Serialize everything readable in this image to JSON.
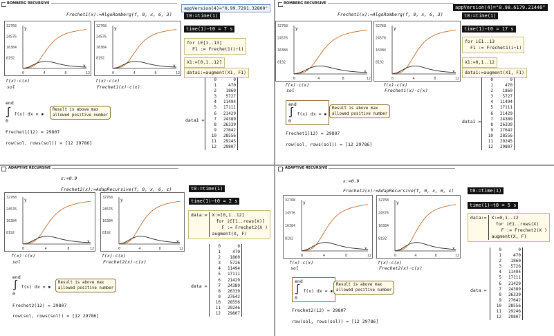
{
  "colors": {
    "curve_f": "#c06a2a",
    "curve_fc": "#222222",
    "note_border": "#8b6b2e"
  },
  "tl": {
    "region_title": "ROMBERG RECURSIVE",
    "def": "Frechet1(x):=AlgoRomberg(f, 0, x, 6, 3)",
    "app": "appVersion(4)=\"0.99.7291.32800\"",
    "t0": "t0:=time(1)",
    "elapsed": "time(1)−t0 = 7 s",
    "loop_for": "for i∈[1..13]",
    "loop_body": "F1 := Frechet1(i−1)",
    "x1": "X1:=[0,1..12]",
    "data1_def": "data1:=augment(X1, F1)",
    "data1_label": "data1 =",
    "plot1_legend": [
      "f(x)·c(x)",
      "sol"
    ],
    "plot2_legend": [
      "f(x)·c(x)",
      "Frechet1(x)·c(x)"
    ],
    "integral_end": "end",
    "integral_expr": "f(x) dx = ▪",
    "integral_zero": "0",
    "note": [
      "Result is above max",
      "allowed positive number"
    ],
    "frechet12": "Frechet1(12) = 29807",
    "row": "row(sol, rows(sol)) = [12  29786]"
  },
  "tr": {
    "region_title": "ROMBERG RECURSIVE",
    "def": "Frechet1(x):=AlgoRomberg(f, 0, x, 6, 3)",
    "app": "appVersion(4)=\"0.98.6179.21440\"",
    "t0": "t0:=time(1)",
    "elapsed": "time(1)−t0 = 17 s",
    "loop_for": "for i∈1..13",
    "loop_body": "F1 := Frechet1(i−1)",
    "x1": "X1:=0,1..12",
    "data1_def": "data1:=augment(X1, F1)",
    "data1_label": "data1 =",
    "plot1_legend": [
      "f(x)·c(x)",
      "sol"
    ],
    "plot2_legend": [
      "f(x)·c(x)",
      "Frechet1(x)·c(x)"
    ],
    "integral_end": "end",
    "integral_expr": "f(x) dx = ▪",
    "integral_zero": "0",
    "note": [
      "Result is above max",
      "allowed positive number"
    ],
    "frechet12": "Frechet1(12) = 29807",
    "row": "row(sol, rows(sol)) = [12  29786]"
  },
  "bl": {
    "region_title": "ADAPTIVE RECURSIVE",
    "eps": "ε:=0.9",
    "def": "Frechet2(x):=AdapRecursive(f, 0, x, 6, ε)",
    "t0": "t0:=time(1)",
    "elapsed": "time(1)−t0 = 2 s",
    "data_label": "data:=",
    "data_x": "X:=[0,1..12]",
    "loop_for": "for i∈[1..rows(X)]",
    "loop_body": "F := Frechet2(X )",
    "aug": "augment(X, F)",
    "data_eq": "data =",
    "plot1_legend": [
      "f(x)·c(x)",
      "sol"
    ],
    "plot2_legend": [
      "f(x)·c(x)",
      "Frechet2(x)·c(x)"
    ],
    "integral_end": "end",
    "integral_expr": "f(x) dx = ▪",
    "integral_zero": "0",
    "note": [
      "Result is above max",
      "allowed positive number"
    ],
    "frechet12": "Frechet2(12) = 29807",
    "row": "row(sol, rows(sol)) = [12  29786]"
  },
  "br": {
    "region_title": "ADAPTIVE RECURSIVE",
    "eps": "ε:=0.9",
    "def": "Frechet2(x):=AdapRecursive(f, 0, x, 6, ε)",
    "t0": "t0:=time(1)",
    "elapsed": "time(1)−t0 = 5 s",
    "data_label": "data:=",
    "data_x": "X:=0,1..12",
    "loop_for": "for i∈1..rows(X)",
    "loop_body": "F := Frechet2(X )",
    "aug": "augment(X, F)",
    "data_eq": "data =",
    "plot1_legend": [
      "f(x)·c(x)",
      "sol"
    ],
    "plot2_legend": [
      "f(x)·c(x)",
      "Frechet2(x)·c(x)"
    ],
    "integral_end": "end",
    "integral_expr": "f(x) dx = ▪",
    "integral_zero": "0",
    "note": [
      "Result is above max",
      "allowed positive number"
    ],
    "frechet12": "Frechet2(12) = 29807",
    "row": "row(sol, rows(sol)) = [12  29786]"
  },
  "plot_axes": {
    "y_ticks": [
      "32768",
      "24576",
      "16384",
      "8192"
    ],
    "x_ticks": [
      "0",
      "4",
      "8",
      "12"
    ],
    "y_label": "y",
    "x_label": "x"
  },
  "matrix_rows": [
    [
      "0",
      "0"
    ],
    [
      "1",
      "470"
    ],
    [
      "2",
      "1860"
    ],
    [
      "3",
      "5727"
    ],
    [
      "4",
      "11494"
    ],
    [
      "5",
      "17111"
    ],
    [
      "6",
      "21429"
    ],
    [
      "7",
      "24389"
    ],
    [
      "8",
      "26339"
    ],
    [
      "9",
      "27642"
    ],
    [
      "10",
      "28556"
    ],
    [
      "11",
      "29245"
    ],
    [
      "12",
      "29807"
    ]
  ],
  "matrix_rows_adaptive": [
    [
      "0",
      "0"
    ],
    [
      "1",
      "470"
    ],
    [
      "2",
      "1860"
    ],
    [
      "3",
      "5726"
    ],
    [
      "4",
      "11494"
    ],
    [
      "5",
      "17111"
    ],
    [
      "6",
      "21429"
    ],
    [
      "7",
      "24389"
    ],
    [
      "8",
      "26339"
    ],
    [
      "9",
      "27642"
    ],
    [
      "10",
      "28556"
    ],
    [
      "11",
      "29246"
    ],
    [
      "12",
      "29807"
    ]
  ],
  "chart_data": {
    "type": "line",
    "x": [
      0,
      1,
      2,
      3,
      4,
      5,
      6,
      7,
      8,
      9,
      10,
      11,
      12
    ],
    "series": [
      {
        "name": "f(x)·c(x)",
        "values": [
          0,
          470,
          1860,
          5727,
          11494,
          17111,
          21429,
          24389,
          26339,
          27642,
          28556,
          29245,
          29807
        ]
      },
      {
        "name": "sol",
        "values": [
          0,
          900,
          2800,
          4600,
          5400,
          5200,
          4300,
          3300,
          2500,
          1900,
          1500,
          1200,
          1000
        ]
      }
    ],
    "ylim": [
      0,
      32768
    ],
    "xlim": [
      0,
      12
    ]
  }
}
